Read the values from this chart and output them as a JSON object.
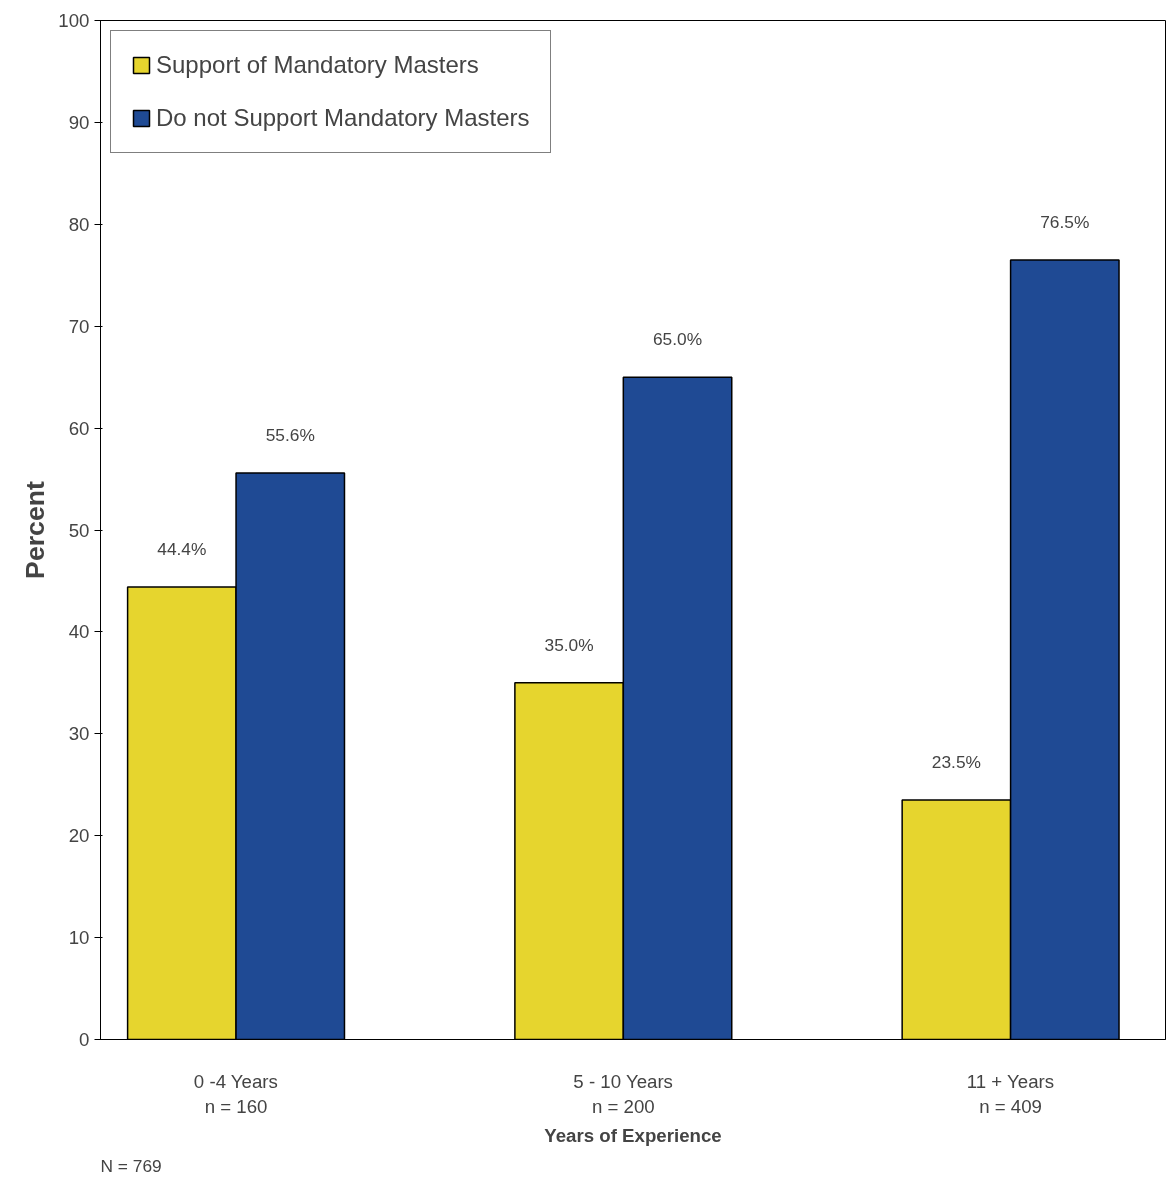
{
  "chart_data": {
    "type": "bar",
    "xlabel": "Years of Experience",
    "ylabel": "Percent",
    "categories": [
      "0 -4 Years\nn = 160",
      "5 - 10 Years\nn = 200",
      "11 + Years\nn = 409"
    ],
    "series": [
      {
        "name": "Support of Mandatory Masters",
        "color": "#e6d52e",
        "values": [
          44.4,
          35.0,
          23.5
        ],
        "value_labels": [
          "44.4%",
          "35.0%",
          "23.5%"
        ]
      },
      {
        "name": "Do not Support Mandatory Masters",
        "color": "#1f4a94",
        "values": [
          55.6,
          65.0,
          76.5
        ],
        "value_labels": [
          "55.6%",
          "65.0%",
          "76.5%"
        ]
      }
    ],
    "ylim": [
      0,
      100
    ],
    "yticks": [
      0,
      10,
      20,
      30,
      40,
      50,
      60,
      70,
      80,
      90,
      100
    ],
    "grid": false,
    "legend": "top left",
    "annotations": [
      "N = 769"
    ]
  }
}
